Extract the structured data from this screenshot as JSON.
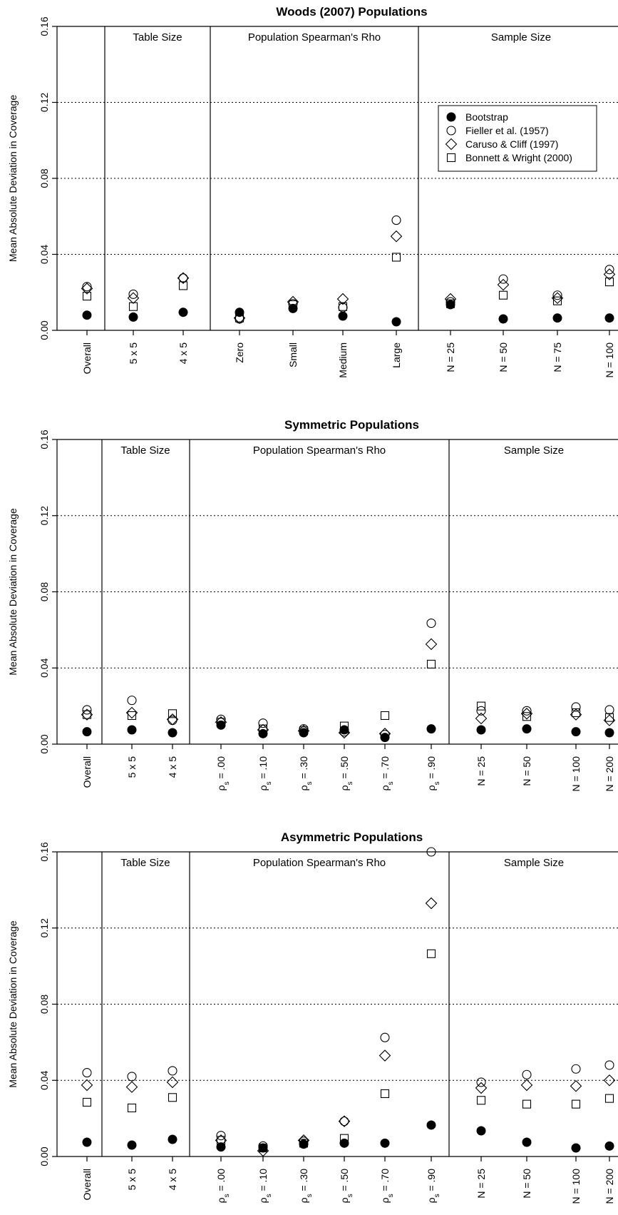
{
  "chart_data": [
    {
      "type": "scatter",
      "title": "Woods (2007) Populations",
      "ylabel": "Mean Absolute Deviation in Coverage",
      "ylim": [
        0,
        0.16
      ],
      "yticks": [
        "0.00",
        "0.04",
        "0.08",
        "0.12",
        "0.16"
      ],
      "grid": "horizontal dotted at 0.04, 0.08, 0.12",
      "categories": [
        "Overall",
        "5 x 5",
        "4 x 5",
        "Zero",
        "Small",
        "Medium",
        "Large",
        "N = 25",
        "N = 50",
        "N = 75",
        "N = 100"
      ],
      "groups": [
        {
          "label": "Table Size",
          "start": 1,
          "end": 2
        },
        {
          "label": "Population Spearman's Rho",
          "start": 3,
          "end": 6
        },
        {
          "label": "Sample Size",
          "start": 7,
          "end": 10
        }
      ],
      "legend": {
        "placement": "top-right"
      },
      "series": [
        {
          "name": "Bootstrap",
          "marker": "filled-circle",
          "values": [
            0.008,
            0.007,
            0.0095,
            0.0095,
            0.0115,
            0.0075,
            0.0045,
            0.0135,
            0.006,
            0.0065,
            0.0065
          ]
        },
        {
          "name": "Fieller et al. (1957)",
          "marker": "open-circle",
          "values": [
            0.023,
            0.019,
            0.0275,
            0.006,
            0.014,
            0.012,
            0.058,
            0.015,
            0.027,
            0.0185,
            0.032
          ]
        },
        {
          "name": "Caruso & Cliff (1997)",
          "marker": "open-diamond",
          "values": [
            0.022,
            0.017,
            0.0275,
            0.0065,
            0.015,
            0.0165,
            0.0495,
            0.0165,
            0.024,
            0.017,
            0.0295
          ]
        },
        {
          "name": "Bonnett & Wright (2000)",
          "marker": "open-square",
          "values": [
            0.018,
            0.0125,
            0.0235,
            0.0065,
            0.0135,
            0.0125,
            0.0385,
            0.014,
            0.0185,
            0.0155,
            0.0255
          ]
        }
      ]
    },
    {
      "type": "scatter",
      "title": "Symmetric Populations",
      "ylabel": "Mean Absolute Deviation in Coverage",
      "ylim": [
        0,
        0.16
      ],
      "yticks": [
        "0.00",
        "0.04",
        "0.08",
        "0.12",
        "0.16"
      ],
      "grid": "horizontal dotted at 0.04, 0.08, 0.12",
      "categories": [
        "Overall",
        "5 x 5",
        "4 x 5",
        "ρs = .00",
        "ρs = .10",
        "ρs = .30",
        "ρs = .50",
        "ρs = .70",
        "ρs = .90",
        "N = 25",
        "N = 50",
        "N = 100",
        "N = 200"
      ],
      "groups": [
        {
          "label": "Table Size",
          "start": 1,
          "end": 2
        },
        {
          "label": "Population Spearman's Rho",
          "start": 3,
          "end": 8
        },
        {
          "label": "Sample Size",
          "start": 9,
          "end": 12
        }
      ],
      "series": [
        {
          "name": "Bootstrap",
          "marker": "filled-circle",
          "values": [
            0.0065,
            0.0075,
            0.006,
            0.01,
            0.0055,
            0.006,
            0.0075,
            0.0035,
            0.008,
            0.0075,
            0.008,
            0.0065,
            0.006
          ]
        },
        {
          "name": "Fieller et al. (1957)",
          "marker": "open-circle",
          "values": [
            0.018,
            0.023,
            0.0125,
            0.013,
            0.011,
            0.008,
            0.0065,
            0.005,
            0.0635,
            0.0175,
            0.0175,
            0.0195,
            0.018
          ]
        },
        {
          "name": "Caruso & Cliff (1997)",
          "marker": "open-diamond",
          "values": [
            0.0155,
            0.0165,
            0.013,
            0.0115,
            0.0075,
            0.007,
            0.006,
            0.0055,
            0.0525,
            0.0135,
            0.016,
            0.0155,
            0.0125
          ]
        },
        {
          "name": "Bonnett & Wright (2000)",
          "marker": "open-square",
          "values": [
            0.0155,
            0.015,
            0.016,
            0.0115,
            0.008,
            0.007,
            0.0095,
            0.015,
            0.042,
            0.02,
            0.0145,
            0.0165,
            0.014
          ]
        }
      ]
    },
    {
      "type": "scatter",
      "title": "Asymmetric Populations",
      "ylabel": "Mean Absolute Deviation in Coverage",
      "ylim": [
        0,
        0.16
      ],
      "yticks": [
        "0.00",
        "0.04",
        "0.08",
        "0.12",
        "0.16"
      ],
      "grid": "horizontal dotted at 0.04, 0.08, 0.12",
      "categories": [
        "Overall",
        "5 x 5",
        "4 x 5",
        "ρs = .00",
        "ρs = .10",
        "ρs = .30",
        "ρs = .50",
        "ρs = .70",
        "ρs = .90",
        "N = 25",
        "N = 50",
        "N = 100",
        "N = 200"
      ],
      "groups": [
        {
          "label": "Table Size",
          "start": 1,
          "end": 2
        },
        {
          "label": "Population Spearman's Rho",
          "start": 3,
          "end": 8
        },
        {
          "label": "Sample Size",
          "start": 9,
          "end": 12
        }
      ],
      "series": [
        {
          "name": "Bootstrap",
          "marker": "filled-circle",
          "values": [
            0.0075,
            0.006,
            0.009,
            0.005,
            0.0045,
            0.0065,
            0.007,
            0.007,
            0.0165,
            0.0135,
            0.0075,
            0.0045,
            0.0055
          ]
        },
        {
          "name": "Fieller et al. (1957)",
          "marker": "open-circle",
          "values": [
            0.044,
            0.042,
            0.045,
            0.011,
            0.0055,
            0.008,
            0.0185,
            0.0625,
            0.16,
            0.039,
            0.043,
            0.046,
            0.048
          ]
        },
        {
          "name": "Caruso & Cliff (1997)",
          "marker": "open-diamond",
          "values": [
            0.0375,
            0.0365,
            0.039,
            0.0085,
            0.003,
            0.0085,
            0.0185,
            0.053,
            0.133,
            0.036,
            0.0375,
            0.037,
            0.04
          ]
        },
        {
          "name": "Bonnett & Wright (2000)",
          "marker": "open-square",
          "values": [
            0.0285,
            0.0255,
            0.031,
            0.0085,
            0.0045,
            0.007,
            0.0095,
            0.033,
            0.1065,
            0.0295,
            0.0275,
            0.0275,
            0.0305
          ]
        }
      ]
    }
  ]
}
